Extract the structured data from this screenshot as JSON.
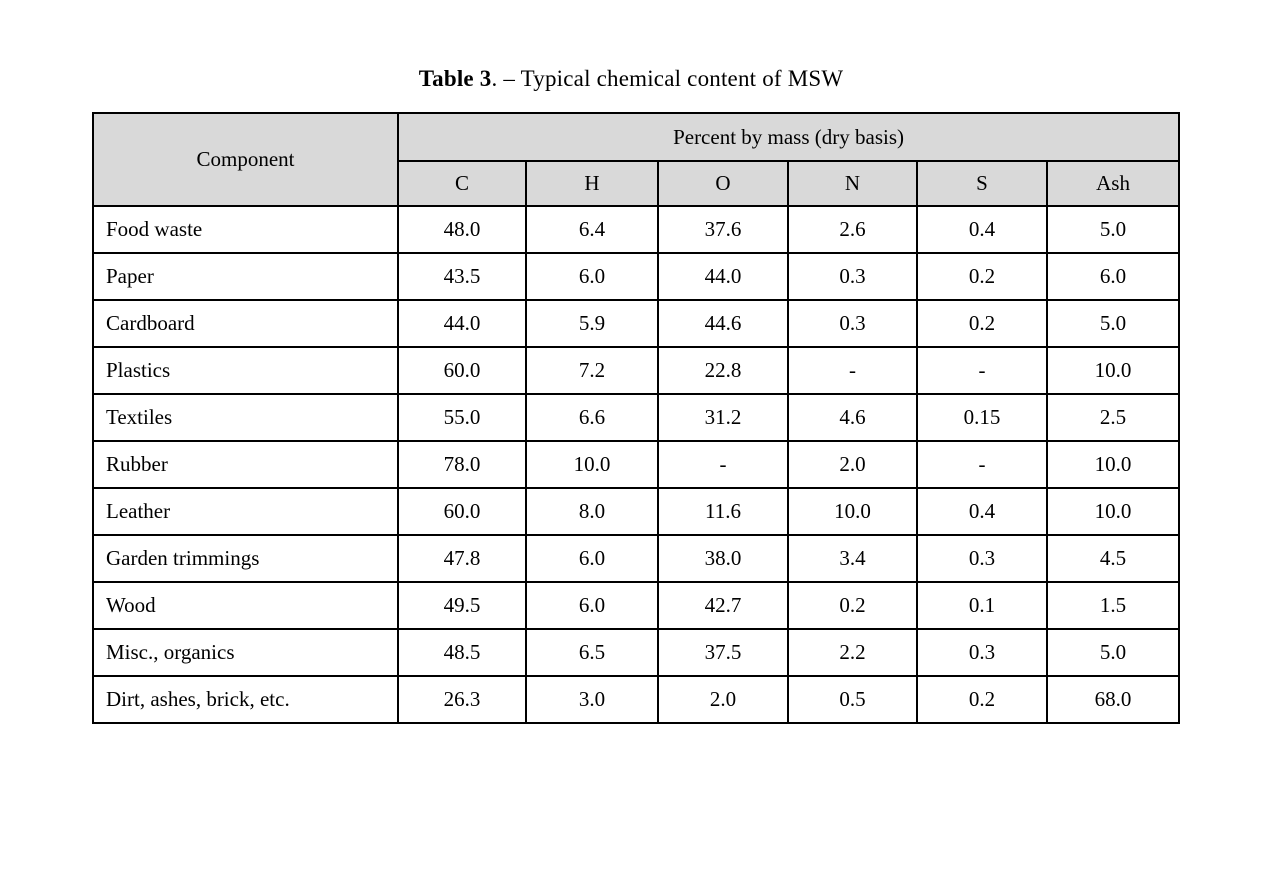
{
  "caption": {
    "label_bold": "Table 3",
    "label_rest": ". – Typical chemical content of MSW"
  },
  "table": {
    "component_header": "Component",
    "group_header": "Percent by mass (dry basis)",
    "columns": [
      "C",
      "H",
      "O",
      "N",
      "S",
      "Ash"
    ],
    "rows": [
      {
        "component": "Food waste",
        "values": [
          "48.0",
          "6.4",
          "37.6",
          "2.6",
          "0.4",
          "5.0"
        ]
      },
      {
        "component": "Paper",
        "values": [
          "43.5",
          "6.0",
          "44.0",
          "0.3",
          "0.2",
          "6.0"
        ]
      },
      {
        "component": "Cardboard",
        "values": [
          "44.0",
          "5.9",
          "44.6",
          "0.3",
          "0.2",
          "5.0"
        ]
      },
      {
        "component": "Plastics",
        "values": [
          "60.0",
          "7.2",
          "22.8",
          "-",
          "-",
          "10.0"
        ]
      },
      {
        "component": "Textiles",
        "values": [
          "55.0",
          "6.6",
          "31.2",
          "4.6",
          "0.15",
          "2.5"
        ]
      },
      {
        "component": "Rubber",
        "values": [
          "78.0",
          "10.0",
          "-",
          "2.0",
          "-",
          "10.0"
        ]
      },
      {
        "component": "Leather",
        "values": [
          "60.0",
          "8.0",
          "11.6",
          "10.0",
          "0.4",
          "10.0"
        ]
      },
      {
        "component": "Garden trimmings",
        "values": [
          "47.8",
          "6.0",
          "38.0",
          "3.4",
          "0.3",
          "4.5"
        ]
      },
      {
        "component": "Wood",
        "values": [
          "49.5",
          "6.0",
          "42.7",
          "0.2",
          "0.1",
          "1.5"
        ]
      },
      {
        "component": "Misc., organics",
        "values": [
          "48.5",
          "6.5",
          "37.5",
          "2.2",
          "0.3",
          "5.0"
        ]
      },
      {
        "component": "Dirt, ashes, brick, etc.",
        "values": [
          "26.3",
          "3.0",
          "2.0",
          "0.5",
          "0.2",
          "68.0"
        ]
      }
    ]
  },
  "colors": {
    "header_bg": "#d9d9d9",
    "border": "#000000",
    "background": "#ffffff"
  }
}
